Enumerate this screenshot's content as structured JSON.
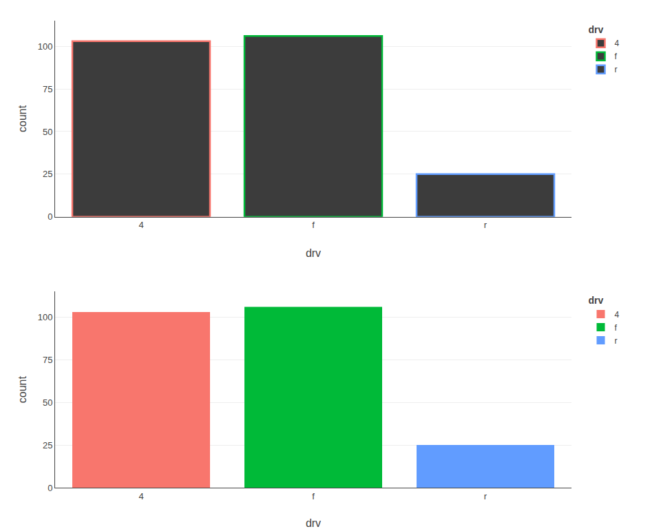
{
  "chart_data": [
    {
      "type": "bar",
      "categories": [
        "4",
        "f",
        "r"
      ],
      "color": "#3c3c3c",
      "series": [
        {
          "name": "4",
          "color": "#F8766D",
          "values": [
            103,
            null,
            null
          ]
        },
        {
          "name": "f",
          "color": "#00BA38",
          "values": [
            null,
            106,
            null
          ]
        },
        {
          "name": "r",
          "color": "#619CFF",
          "values": [
            null,
            null,
            25
          ]
        }
      ],
      "xlabel": "drv",
      "ylabel": "count",
      "legend_title": "drv",
      "ylim": [
        0,
        115
      ],
      "yticks": [
        0,
        25,
        50,
        75,
        100
      ],
      "grid": true,
      "legend": "right"
    },
    {
      "type": "bar",
      "categories": [
        "4",
        "f",
        "r"
      ],
      "series": [
        {
          "name": "4",
          "color": "#F8766D",
          "values": [
            103,
            null,
            null
          ]
        },
        {
          "name": "f",
          "color": "#00BA38",
          "values": [
            null,
            106,
            null
          ]
        },
        {
          "name": "r",
          "color": "#619CFF",
          "values": [
            null,
            null,
            25
          ]
        }
      ],
      "xlabel": "drv",
      "ylabel": "count",
      "legend_title": "drv",
      "ylim": [
        0,
        115
      ],
      "yticks": [
        0,
        25,
        50,
        75,
        100
      ],
      "grid": true,
      "legend": "right"
    }
  ]
}
